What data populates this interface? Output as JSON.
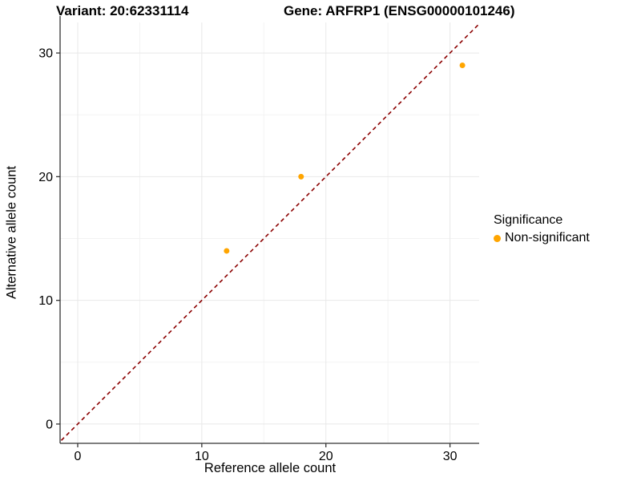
{
  "titles": {
    "variant": "Variant: 20:62331114",
    "gene": "Gene: ARFRP1 (ENSG00000101246)"
  },
  "chart_data": {
    "type": "scatter",
    "title_left": "Variant: 20:62331114",
    "title_right": "Gene: ARFRP1 (ENSG00000101246)",
    "xlabel": "Reference allele count",
    "ylabel": "Alternative allele count",
    "points": [
      {
        "x": 12,
        "y": 14
      },
      {
        "x": 18,
        "y": 20
      },
      {
        "x": 31,
        "y": 29
      }
    ],
    "xticks": [
      0,
      10,
      20,
      30
    ],
    "yticks": [
      0,
      10,
      20,
      30
    ],
    "xlim": [
      -1.42,
      32.35
    ],
    "ylim": [
      -1.56,
      32.47
    ],
    "grid": "major+minor",
    "identity_line": {
      "equation": "y = x",
      "style": "dashed",
      "color": "#8B0000"
    },
    "point_color": "#FFA500",
    "legend": {
      "position": "right",
      "title": "Significance",
      "items": [
        {
          "label": "Non-significant",
          "color": "#FFA500"
        }
      ]
    },
    "colors": {
      "grid_major": "#E8E8E8",
      "grid_minor": "#F3F3F3",
      "axis": "#333333",
      "text": "#000000"
    }
  }
}
